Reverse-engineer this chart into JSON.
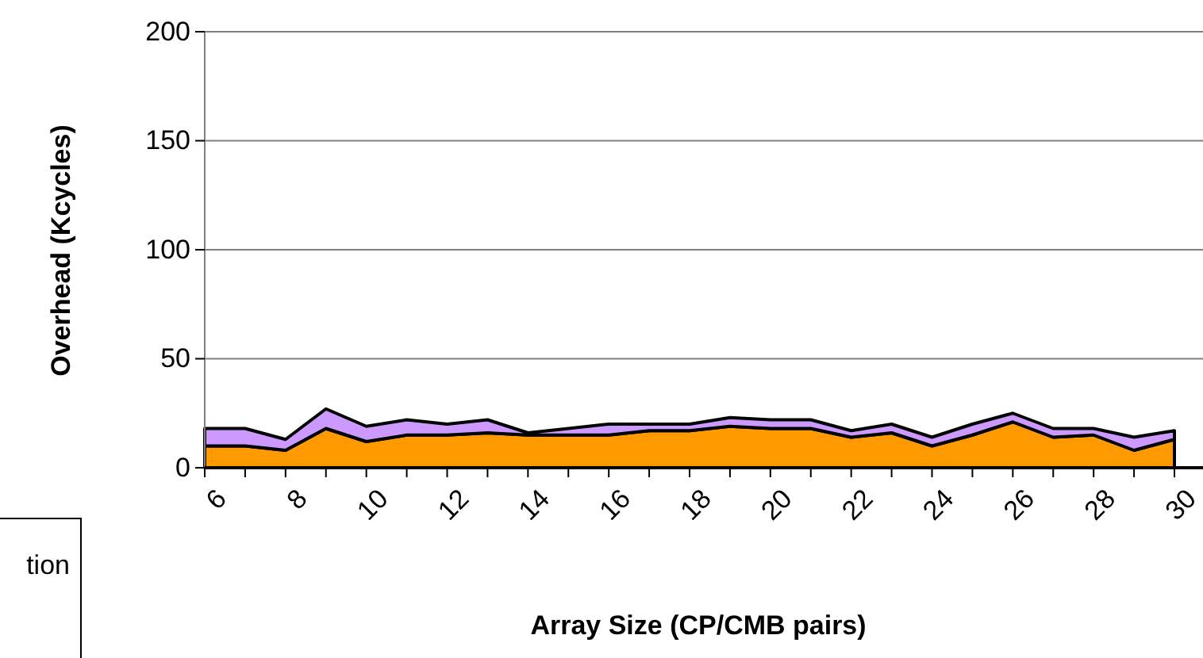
{
  "chart_data": {
    "type": "area",
    "stacked": true,
    "xlabel": "Array Size (CP/CMB pairs)",
    "ylabel": "Overhead (Kcycles)",
    "categories": [
      "6",
      null,
      "8",
      null,
      "10",
      null,
      "12",
      null,
      "14",
      null,
      "16",
      null,
      "18",
      null,
      "20",
      null,
      "22",
      null,
      "24",
      null,
      "26",
      null,
      "28",
      null,
      "30"
    ],
    "series": [
      {
        "color": "#ff9900",
        "values": [
          10,
          10,
          8,
          18,
          12,
          15,
          15,
          16,
          15,
          15,
          15,
          17,
          17,
          19,
          18,
          18,
          14,
          16,
          10,
          15,
          21,
          14,
          15,
          8,
          13
        ]
      },
      {
        "color": "#cc99ff",
        "values": [
          8,
          8,
          5,
          9,
          7,
          7,
          5,
          6,
          1,
          3,
          5,
          3,
          3,
          4,
          4,
          4,
          3,
          4,
          4,
          5,
          4,
          4,
          3,
          6,
          4
        ]
      }
    ],
    "ylim": [
      0,
      200
    ],
    "yticks": [
      0,
      50,
      100,
      150,
      200
    ],
    "grid": "y",
    "annotations": [
      "tion"
    ]
  }
}
